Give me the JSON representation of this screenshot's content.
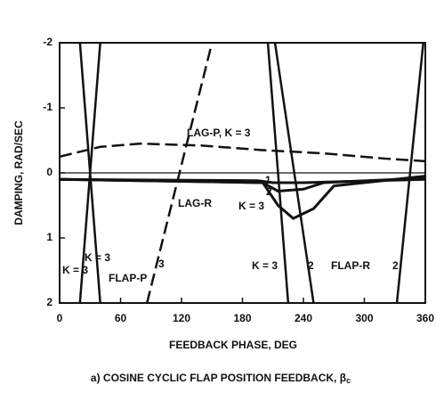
{
  "chart_data": {
    "type": "line",
    "xlabel": "FEEDBACK PHASE, DEG",
    "ylabel": "DAMPING, RAD/SEC",
    "caption": "a) COSINE CYCLIC FLAP POSITION FEEDBACK, β",
    "caption_subscript": "c",
    "xlim": [
      0,
      360
    ],
    "xticks": [
      0,
      60,
      120,
      180,
      240,
      300,
      360
    ],
    "ylim": [
      -2,
      2
    ],
    "yticks": [
      -2,
      -1,
      0,
      1,
      2
    ],
    "y_inverted": true,
    "zero_line": true,
    "series": [
      {
        "color": "#111",
        "dash": true,
        "width": 2.5,
        "x": [
          0,
          40,
          80,
          140,
          200,
          260,
          320,
          360
        ],
        "values": [
          -0.25,
          -0.4,
          -0.45,
          -0.42,
          -0.35,
          -0.3,
          -0.22,
          -0.18
        ]
      },
      {
        "color": "#111",
        "dash": false,
        "width": 3,
        "x": [
          0,
          195,
          210,
          240,
          360
        ],
        "values": [
          0.1,
          0.12,
          0.15,
          0.15,
          0.1
        ]
      },
      {
        "color": "#111",
        "dash": false,
        "width": 3,
        "x": [
          0,
          200,
          215,
          240,
          260,
          360
        ],
        "values": [
          0.1,
          0.15,
          0.28,
          0.25,
          0.15,
          0.08
        ]
      },
      {
        "color": "#111",
        "dash": false,
        "width": 3,
        "x": [
          0,
          200,
          215,
          230,
          250,
          270,
          360
        ],
        "values": [
          0.1,
          0.15,
          0.5,
          0.7,
          0.55,
          0.2,
          0.05
        ]
      },
      {
        "color": "#111",
        "dash": false,
        "width": 2.5,
        "x": [
          20,
          40
        ],
        "values": [
          2,
          -2
        ]
      },
      {
        "color": "#111",
        "dash": false,
        "width": 2.5,
        "x": [
          40,
          20
        ],
        "values": [
          2,
          -2
        ]
      },
      {
        "color": "#111",
        "dash": true,
        "width": 2.5,
        "x": [
          86,
          150
        ],
        "values": [
          2,
          -2
        ]
      },
      {
        "color": "#111",
        "dash": false,
        "width": 2.5,
        "x": [
          205,
          225
        ],
        "values": [
          -2,
          2
        ]
      },
      {
        "color": "#111",
        "dash": false,
        "width": 2.5,
        "x": [
          212,
          250
        ],
        "values": [
          -2,
          2
        ]
      },
      {
        "color": "#111",
        "dash": false,
        "width": 2.5,
        "x": [
          332,
          358
        ],
        "values": [
          2,
          -2
        ]
      }
    ],
    "annotations": [
      "LAG-P, K = 3",
      "LAG-R",
      "1",
      "2",
      "K = 3",
      "K = 3",
      "K = 3",
      "FLAP-P",
      "3",
      "K = 3",
      "2",
      "FLAP-R",
      "2"
    ]
  }
}
